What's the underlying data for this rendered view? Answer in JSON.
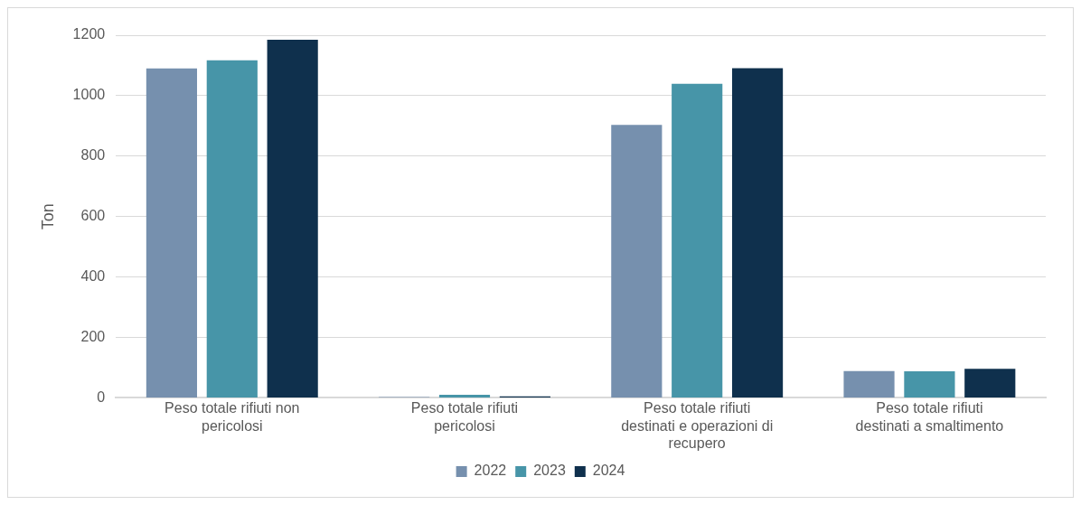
{
  "chart_data": {
    "type": "bar",
    "ylabel": "Ton",
    "categories": [
      "Peso totale rifiuti non pericolosi",
      "Peso totale rifiuti pericolosi",
      "Peso totale rifiuti destinati e operazioni di recupero",
      "Peso totale rifiuti destinati a smaltimento"
    ],
    "series": [
      {
        "name": "2022",
        "color": "#7690ae",
        "values": [
          1090,
          3,
          903,
          89
        ]
      },
      {
        "name": "2023",
        "color": "#4795a8",
        "values": [
          1117,
          10,
          1039,
          88
        ]
      },
      {
        "name": "2024",
        "color": "#0f304d",
        "values": [
          1185,
          5,
          1091,
          96
        ]
      }
    ],
    "ylim": [
      0,
      1200
    ],
    "yticks": [
      0,
      200,
      400,
      600,
      800,
      1000,
      1200
    ],
    "grid": "y",
    "legend": "bottom"
  }
}
